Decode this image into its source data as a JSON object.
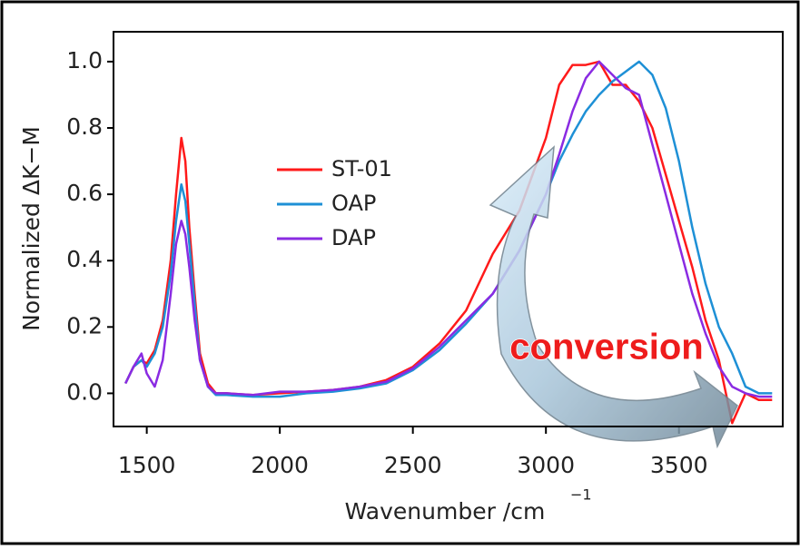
{
  "chart_data": {
    "type": "line",
    "ylabel": "Normalized ΔK−M",
    "xlabel": "Wavenumber /cm",
    "xlabel_superscript": "−1",
    "annotation": "conversion",
    "x": [
      1420,
      1450,
      1480,
      1500,
      1530,
      1560,
      1590,
      1610,
      1630,
      1645,
      1660,
      1680,
      1700,
      1730,
      1760,
      1800,
      1900,
      2000,
      2100,
      2200,
      2300,
      2400,
      2500,
      2600,
      2700,
      2800,
      2900,
      3000,
      3050,
      3100,
      3150,
      3200,
      3250,
      3300,
      3350,
      3400,
      3450,
      3500,
      3550,
      3600,
      3650,
      3700,
      3750,
      3800,
      3850
    ],
    "series": [
      {
        "name": "ST-01",
        "color": "#ff1a1a",
        "values": [
          0.03,
          0.08,
          0.1,
          0.09,
          0.13,
          0.22,
          0.4,
          0.6,
          0.77,
          0.7,
          0.5,
          0.3,
          0.12,
          0.03,
          0.0,
          0.0,
          -0.005,
          0.0,
          0.005,
          0.01,
          0.02,
          0.04,
          0.08,
          0.15,
          0.25,
          0.42,
          0.55,
          0.77,
          0.93,
          0.99,
          0.99,
          1.0,
          0.93,
          0.93,
          0.88,
          0.8,
          0.66,
          0.52,
          0.38,
          0.22,
          0.1,
          -0.09,
          0.0,
          -0.02,
          -0.02
        ]
      },
      {
        "name": "OAP",
        "color": "#1e90d6",
        "values": [
          0.03,
          0.08,
          0.1,
          0.08,
          0.12,
          0.2,
          0.36,
          0.52,
          0.63,
          0.58,
          0.45,
          0.27,
          0.1,
          0.02,
          -0.005,
          -0.005,
          -0.01,
          -0.01,
          0.0,
          0.005,
          0.015,
          0.03,
          0.07,
          0.13,
          0.21,
          0.3,
          0.43,
          0.6,
          0.7,
          0.78,
          0.85,
          0.9,
          0.94,
          0.97,
          1.0,
          0.96,
          0.86,
          0.7,
          0.5,
          0.33,
          0.2,
          0.12,
          0.02,
          0.0,
          0.0
        ]
      },
      {
        "name": "DAP",
        "color": "#8a2be2",
        "values": [
          0.03,
          0.08,
          0.12,
          0.06,
          0.02,
          0.1,
          0.3,
          0.45,
          0.52,
          0.48,
          0.38,
          0.22,
          0.1,
          0.02,
          0.0,
          0.0,
          -0.005,
          0.005,
          0.005,
          0.01,
          0.02,
          0.035,
          0.075,
          0.14,
          0.22,
          0.3,
          0.43,
          0.6,
          0.72,
          0.85,
          0.95,
          1.0,
          0.96,
          0.92,
          0.9,
          0.75,
          0.6,
          0.45,
          0.3,
          0.18,
          0.08,
          0.02,
          0.0,
          -0.01,
          -0.01
        ]
      }
    ],
    "xlim": [
      1375,
      3890
    ],
    "ylim": [
      -0.1,
      1.09
    ],
    "xticks": [
      1500,
      2000,
      2500,
      3000,
      3500
    ],
    "yticks": [
      {
        "value": 0,
        "label": "0.0"
      },
      0.2,
      0.4,
      0.6,
      0.8,
      {
        "value": 1,
        "label": "1.0"
      }
    ],
    "grid": false
  }
}
